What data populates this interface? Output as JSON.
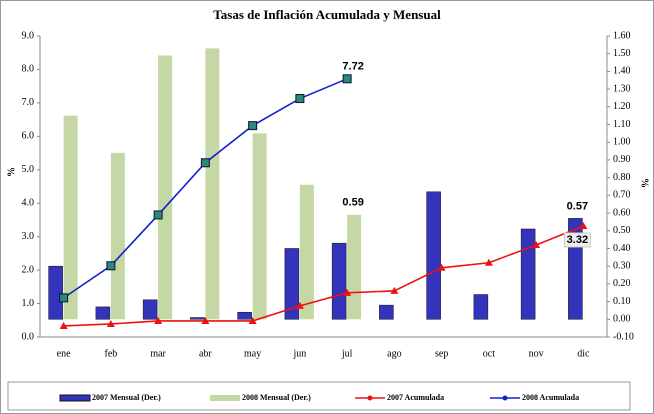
{
  "chart_data": {
    "type": "combo",
    "title": "Tasas de Inflación Acumulada y Mensual",
    "ylabel": "%",
    "y2label": "%",
    "categories": [
      "ene",
      "feb",
      "mar",
      "abr",
      "may",
      "jun",
      "jul",
      "ago",
      "sep",
      "oct",
      "nov",
      "dic"
    ],
    "ylim": [
      0,
      9
    ],
    "yticks": [
      {
        "value": 0,
        "label": "0.0"
      },
      {
        "value": 1,
        "label": "1.0"
      },
      {
        "value": 2,
        "label": "2.0"
      },
      {
        "value": 3,
        "label": "3.0"
      },
      {
        "value": 4,
        "label": "4.0"
      },
      {
        "value": 5,
        "label": "5.0"
      },
      {
        "value": 6,
        "label": "6.0"
      },
      {
        "value": 7,
        "label": "7.0"
      },
      {
        "value": 8,
        "label": "8.0"
      },
      {
        "value": 9,
        "label": "9.0"
      }
    ],
    "y2lim": [
      -0.1,
      1.6
    ],
    "y2ticks": [
      {
        "value": -0.1,
        "label": "-0.10"
      },
      {
        "value": 0,
        "label": "0.00"
      },
      {
        "value": 0.1,
        "label": "0.10"
      },
      {
        "value": 0.2,
        "label": "0.20"
      },
      {
        "value": 0.3,
        "label": "0.30"
      },
      {
        "value": 0.4,
        "label": "0.40"
      },
      {
        "value": 0.5,
        "label": "0.50"
      },
      {
        "value": 0.6,
        "label": "0.60"
      },
      {
        "value": 0.7,
        "label": "0.70"
      },
      {
        "value": 0.8,
        "label": "0.80"
      },
      {
        "value": 0.9,
        "label": "0.90"
      },
      {
        "value": 1,
        "label": "1.00"
      },
      {
        "value": 1.1,
        "label": "1.10"
      },
      {
        "value": 1.2,
        "label": "1.20"
      },
      {
        "value": 1.3,
        "label": "1.30"
      },
      {
        "value": 1.4,
        "label": "1.40"
      },
      {
        "value": 1.5,
        "label": "1.50"
      },
      {
        "value": 1.6,
        "label": "1.60"
      }
    ],
    "series": [
      {
        "name": "2007 Mensual (Der.)",
        "type": "bar",
        "axis": "y2",
        "color": "#3333bb",
        "values": [
          0.3,
          0.07,
          0.11,
          0.01,
          0.04,
          0.4,
          0.43,
          0.08,
          0.72,
          0.14,
          0.51,
          0.57
        ],
        "labels_at": [
          11
        ]
      },
      {
        "name": "2008 Mensual (Der.)",
        "type": "bar",
        "axis": "y2",
        "color": "#c4d7a4",
        "values": [
          1.15,
          0.94,
          1.49,
          1.53,
          1.05,
          0.76,
          0.59,
          null,
          null,
          null,
          null,
          null
        ],
        "labels_at": [
          6
        ]
      },
      {
        "name": "2007 Acumulada",
        "type": "line",
        "color": "#ee1111",
        "values": [
          0.33,
          0.39,
          0.48,
          0.48,
          0.48,
          0.93,
          1.32,
          1.38,
          2.07,
          2.22,
          2.75,
          3.32
        ],
        "labels_at": [
          11
        ]
      },
      {
        "name": "2008 Acumulada",
        "type": "line",
        "color": "#1122cc",
        "values": [
          1.17,
          2.13,
          3.65,
          5.21,
          6.32,
          7.13,
          7.72,
          null,
          null,
          null,
          null,
          null
        ],
        "labels_at": [
          6
        ]
      }
    ]
  }
}
